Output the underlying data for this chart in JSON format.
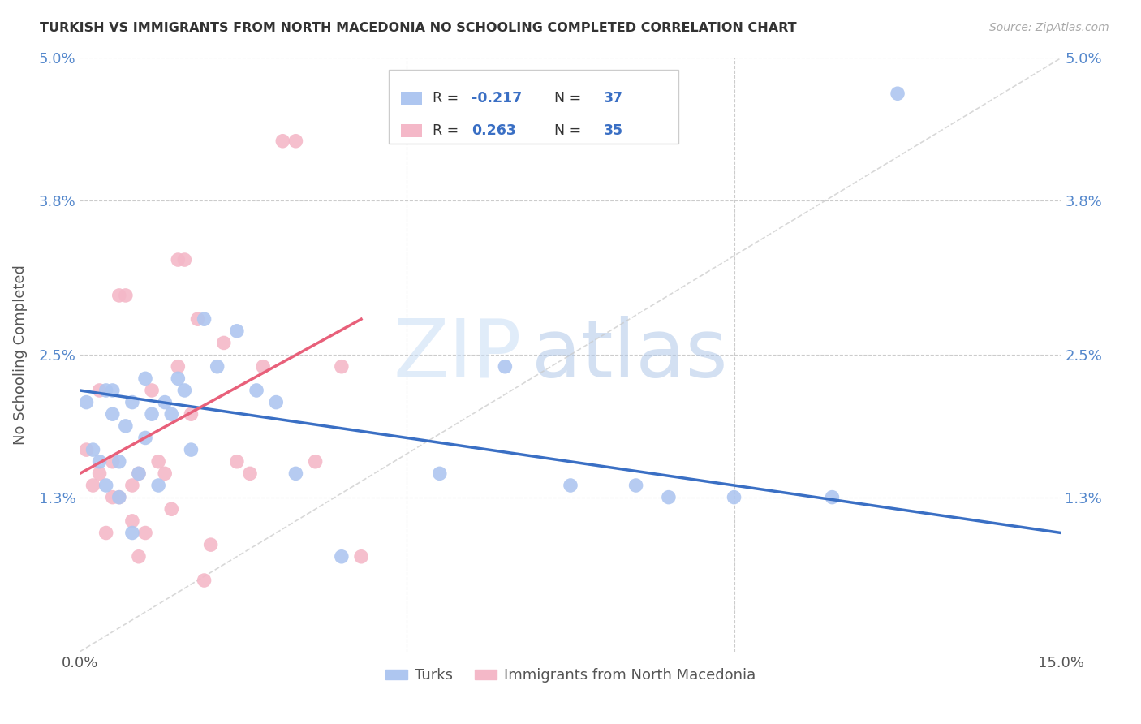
{
  "title": "TURKISH VS IMMIGRANTS FROM NORTH MACEDONIA NO SCHOOLING COMPLETED CORRELATION CHART",
  "source": "Source: ZipAtlas.com",
  "ylabel": "No Schooling Completed",
  "xlim": [
    0.0,
    0.15
  ],
  "ylim": [
    0.0,
    0.05
  ],
  "turks_color": "#aec6f0",
  "immigrants_color": "#f4b8c8",
  "turks_line_color": "#3a6fc4",
  "immigrants_line_color": "#e8607a",
  "diagonal_line_color": "#c8c8c8",
  "watermark_zip": "ZIP",
  "watermark_atlas": "atlas",
  "turks_x": [
    0.001,
    0.002,
    0.003,
    0.004,
    0.004,
    0.005,
    0.005,
    0.006,
    0.006,
    0.007,
    0.008,
    0.008,
    0.009,
    0.01,
    0.01,
    0.011,
    0.012,
    0.013,
    0.014,
    0.015,
    0.016,
    0.017,
    0.019,
    0.021,
    0.024,
    0.027,
    0.03,
    0.033,
    0.04,
    0.055,
    0.065,
    0.075,
    0.085,
    0.09,
    0.1,
    0.115,
    0.125
  ],
  "turks_y": [
    0.021,
    0.017,
    0.016,
    0.014,
    0.022,
    0.022,
    0.02,
    0.016,
    0.013,
    0.019,
    0.01,
    0.021,
    0.015,
    0.023,
    0.018,
    0.02,
    0.014,
    0.021,
    0.02,
    0.023,
    0.022,
    0.017,
    0.028,
    0.024,
    0.027,
    0.022,
    0.021,
    0.015,
    0.008,
    0.015,
    0.024,
    0.014,
    0.014,
    0.013,
    0.013,
    0.013,
    0.047
  ],
  "immigrants_x": [
    0.001,
    0.002,
    0.003,
    0.003,
    0.004,
    0.005,
    0.005,
    0.006,
    0.006,
    0.007,
    0.008,
    0.008,
    0.009,
    0.009,
    0.01,
    0.011,
    0.012,
    0.013,
    0.014,
    0.015,
    0.015,
    0.016,
    0.017,
    0.018,
    0.019,
    0.02,
    0.022,
    0.024,
    0.026,
    0.028,
    0.031,
    0.033,
    0.036,
    0.04,
    0.043
  ],
  "immigrants_y": [
    0.017,
    0.014,
    0.015,
    0.022,
    0.01,
    0.016,
    0.013,
    0.013,
    0.03,
    0.03,
    0.011,
    0.014,
    0.008,
    0.015,
    0.01,
    0.022,
    0.016,
    0.015,
    0.012,
    0.033,
    0.024,
    0.033,
    0.02,
    0.028,
    0.006,
    0.009,
    0.026,
    0.016,
    0.015,
    0.024,
    0.043,
    0.043,
    0.016,
    0.024,
    0.008
  ],
  "turks_line_x0": 0.0,
  "turks_line_y0": 0.022,
  "turks_line_x1": 0.15,
  "turks_line_y1": 0.01,
  "immigrants_line_x0": 0.0,
  "immigrants_line_y0": 0.015,
  "immigrants_line_x1": 0.043,
  "immigrants_line_y1": 0.028
}
